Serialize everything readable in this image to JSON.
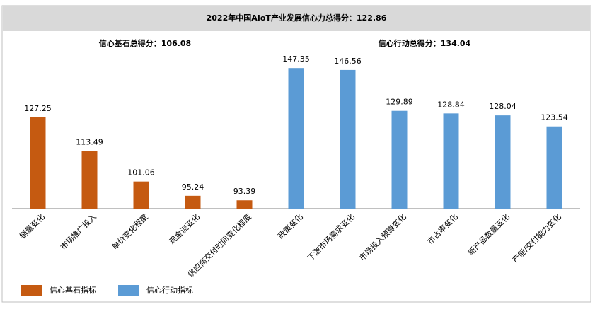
{
  "chart_data": {
    "type": "bar",
    "title": "2022年中国AIoT产业发展信心力总得分：122.86",
    "group_titles": [
      "信心基石总得分：106.08",
      "信心行动总得分：134.04"
    ],
    "categories": [
      "销量变化",
      "市场推广投入",
      "单价变化程度",
      "现金流变化",
      "供应商交付时间变化程度",
      "政策变化",
      "下游市场需求变化",
      "市场投入预算变化",
      "市占率变化",
      "新产品数量变化",
      "产能/交付能力变化"
    ],
    "series": [
      {
        "name": "信心基石指标",
        "color": "#c55a11",
        "values": [
          127.25,
          113.49,
          101.06,
          95.24,
          93.39,
          null,
          null,
          null,
          null,
          null,
          null
        ]
      },
      {
        "name": "信心行动指标",
        "color": "#5b9bd5",
        "values": [
          null,
          null,
          null,
          null,
          null,
          147.35,
          146.56,
          129.89,
          128.84,
          128.04,
          123.54
        ]
      }
    ],
    "ylim": [
      90,
      150
    ],
    "grid": false
  }
}
